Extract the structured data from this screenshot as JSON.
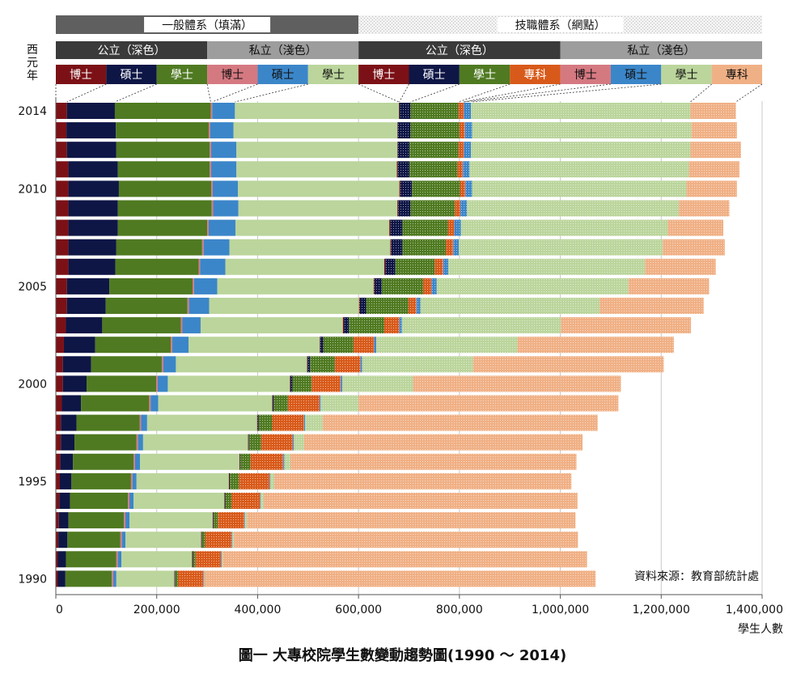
{
  "chart_data": {
    "type": "bar",
    "orientation": "horizontal",
    "stacked": true,
    "caption": "圖一  大專校院學生數變動趨勢圖(1990 ～ 2014)",
    "xlabel": "學生人數",
    "ylabel": "西元年",
    "source_note": "資料來源：教育部統計處",
    "xlim": [
      0,
      1400000
    ],
    "x_ticks": [
      "0",
      "200,000",
      "400,000",
      "600,000",
      "800,000",
      "1,000,000",
      "1,200,000",
      "1,400,000"
    ],
    "y_tick_labels": [
      {
        "year": 2014,
        "label": "2014"
      },
      {
        "year": 2010,
        "label": "2010"
      },
      {
        "year": 2005,
        "label": "2005"
      },
      {
        "year": 2000,
        "label": "2000"
      },
      {
        "year": 1995,
        "label": "1995"
      },
      {
        "year": 1990,
        "label": "1990"
      }
    ],
    "header": {
      "systems": [
        {
          "label": "一般體系（填滿）",
          "span": 6
        },
        {
          "label": "技職體系（網點）",
          "span": 8
        }
      ],
      "sectors": [
        {
          "label": "公立（深色）",
          "span": 3,
          "theme": "dark"
        },
        {
          "label": "私立（淺色）",
          "span": 3,
          "theme": "light"
        },
        {
          "label": "公立（深色）",
          "span": 4,
          "theme": "dark"
        },
        {
          "label": "私立（淺色）",
          "span": 4,
          "theme": "light"
        }
      ]
    },
    "series": [
      {
        "name": "博士",
        "color": "#7b1116",
        "pattern": false
      },
      {
        "name": "碩士",
        "color": "#0e1646",
        "pattern": false
      },
      {
        "name": "學士",
        "color": "#4f7a21",
        "pattern": false
      },
      {
        "name": "博士",
        "color": "#d57981",
        "pattern": false
      },
      {
        "name": "碩士",
        "color": "#3b86c9",
        "pattern": false
      },
      {
        "name": "學士",
        "color": "#bbd59c",
        "pattern": false
      },
      {
        "name": "博士",
        "color": "#7b1116",
        "pattern": true
      },
      {
        "name": "碩士",
        "color": "#0e1646",
        "pattern": true
      },
      {
        "name": "學士",
        "color": "#4f7a21",
        "pattern": true
      },
      {
        "name": "專科",
        "color": "#d85a1a",
        "pattern": true
      },
      {
        "name": "博士",
        "color": "#d57981",
        "pattern": true
      },
      {
        "name": "碩士",
        "color": "#3b86c9",
        "pattern": true
      },
      {
        "name": "學士",
        "color": "#bbd59c",
        "pattern": true
      },
      {
        "name": "專科",
        "color": "#f0b085",
        "pattern": true
      }
    ],
    "years": [
      2014,
      2013,
      2012,
      2011,
      2010,
      2009,
      2008,
      2007,
      2006,
      2005,
      2004,
      2003,
      2002,
      2001,
      2000,
      1999,
      1998,
      1997,
      1996,
      1995,
      1994,
      1993,
      1992,
      1991,
      1990
    ],
    "rows": [
      [
        22000,
        95000,
        190000,
        3000,
        45000,
        325000,
        1000,
        22000,
        95000,
        10000,
        1000,
        14000,
        435000,
        90000
      ],
      [
        21000,
        98000,
        184000,
        3000,
        46000,
        325000,
        1000,
        25000,
        97000,
        10000,
        1000,
        14000,
        435000,
        90000
      ],
      [
        22000,
        98000,
        185000,
        3000,
        50000,
        319000,
        1000,
        23000,
        97000,
        10000,
        1000,
        14000,
        435000,
        100000
      ],
      [
        25000,
        98000,
        182000,
        3000,
        50000,
        318000,
        2000,
        23000,
        95000,
        10000,
        1000,
        13000,
        435000,
        100000
      ],
      [
        25000,
        100000,
        183000,
        3000,
        50000,
        320000,
        2000,
        23000,
        95000,
        10000,
        1000,
        13000,
        425000,
        100000
      ],
      [
        25000,
        98000,
        186000,
        3000,
        50000,
        315000,
        2000,
        24000,
        88000,
        10000,
        1000,
        13000,
        420000,
        100000
      ],
      [
        25000,
        98000,
        177000,
        3000,
        53000,
        305000,
        2000,
        24000,
        90000,
        12000,
        1000,
        13000,
        410000,
        110000
      ],
      [
        25000,
        95000,
        170000,
        3000,
        51000,
        319000,
        2000,
        22000,
        86000,
        14000,
        1000,
        11000,
        404000,
        123000
      ],
      [
        25000,
        93000,
        165000,
        3000,
        50000,
        315000,
        2000,
        20000,
        78000,
        16000,
        1000,
        10000,
        390000,
        140000
      ],
      [
        22000,
        84000,
        165000,
        3000,
        46000,
        310000,
        2000,
        14000,
        82000,
        16000,
        1000,
        10000,
        380000,
        160000
      ],
      [
        22000,
        77000,
        162000,
        3000,
        40000,
        297000,
        2000,
        12000,
        84000,
        15000,
        1000,
        8000,
        355000,
        206000
      ],
      [
        20000,
        72000,
        156000,
        3000,
        36000,
        282000,
        2000,
        10000,
        70000,
        29000,
        1000,
        5000,
        315000,
        258000
      ],
      [
        16000,
        62000,
        150000,
        3000,
        32000,
        260000,
        1000,
        6000,
        60000,
        40000,
        1000,
        4000,
        280000,
        310000
      ],
      [
        14000,
        56000,
        140000,
        3000,
        25000,
        260000,
        1000,
        5000,
        49000,
        50000,
        1000,
        3000,
        220000,
        378000
      ],
      [
        14000,
        47000,
        138000,
        3000,
        20000,
        242000,
        1000,
        4000,
        38000,
        57000,
        1000,
        3000,
        140000,
        412000
      ],
      [
        12000,
        38000,
        135000,
        3000,
        15000,
        226000,
        1000,
        2000,
        28000,
        62000,
        1000,
        2000,
        75000,
        515000
      ],
      [
        10000,
        31000,
        125000,
        3000,
        12000,
        218000,
        1000,
        2000,
        27000,
        62000,
        1000,
        2000,
        35000,
        545000
      ],
      [
        10000,
        27000,
        123000,
        3000,
        10000,
        208000,
        1000,
        1000,
        24000,
        62000,
        1000,
        2000,
        20000,
        552000
      ],
      [
        9000,
        25000,
        120000,
        3000,
        10000,
        197000,
        1000,
        1000,
        20000,
        64000,
        1000,
        2000,
        12000,
        567000
      ],
      [
        8000,
        23000,
        118000,
        3000,
        8000,
        183000,
        1000,
        1000,
        18000,
        60000,
        1000,
        1000,
        8000,
        589000
      ],
      [
        7000,
        21000,
        115000,
        3000,
        8000,
        180000,
        1000,
        1000,
        12000,
        56000,
        1000,
        1000,
        6000,
        622000
      ],
      [
        6000,
        19000,
        110000,
        3000,
        8000,
        165000,
        1000,
        1000,
        8000,
        52000,
        1000,
        1000,
        4000,
        651000
      ],
      [
        5000,
        18000,
        105000,
        3000,
        7000,
        150000,
        1000,
        1000,
        6000,
        52000,
        1000,
        1000,
        3000,
        682000
      ],
      [
        4000,
        16000,
        100000,
        3000,
        7000,
        140000,
        1000,
        1000,
        5000,
        50000,
        1000,
        1000,
        2000,
        722000
      ],
      [
        4000,
        15000,
        92000,
        3000,
        6000,
        115000,
        1000,
        1000,
        5000,
        50000,
        1000,
        1000,
        1000,
        775000
      ]
    ]
  }
}
